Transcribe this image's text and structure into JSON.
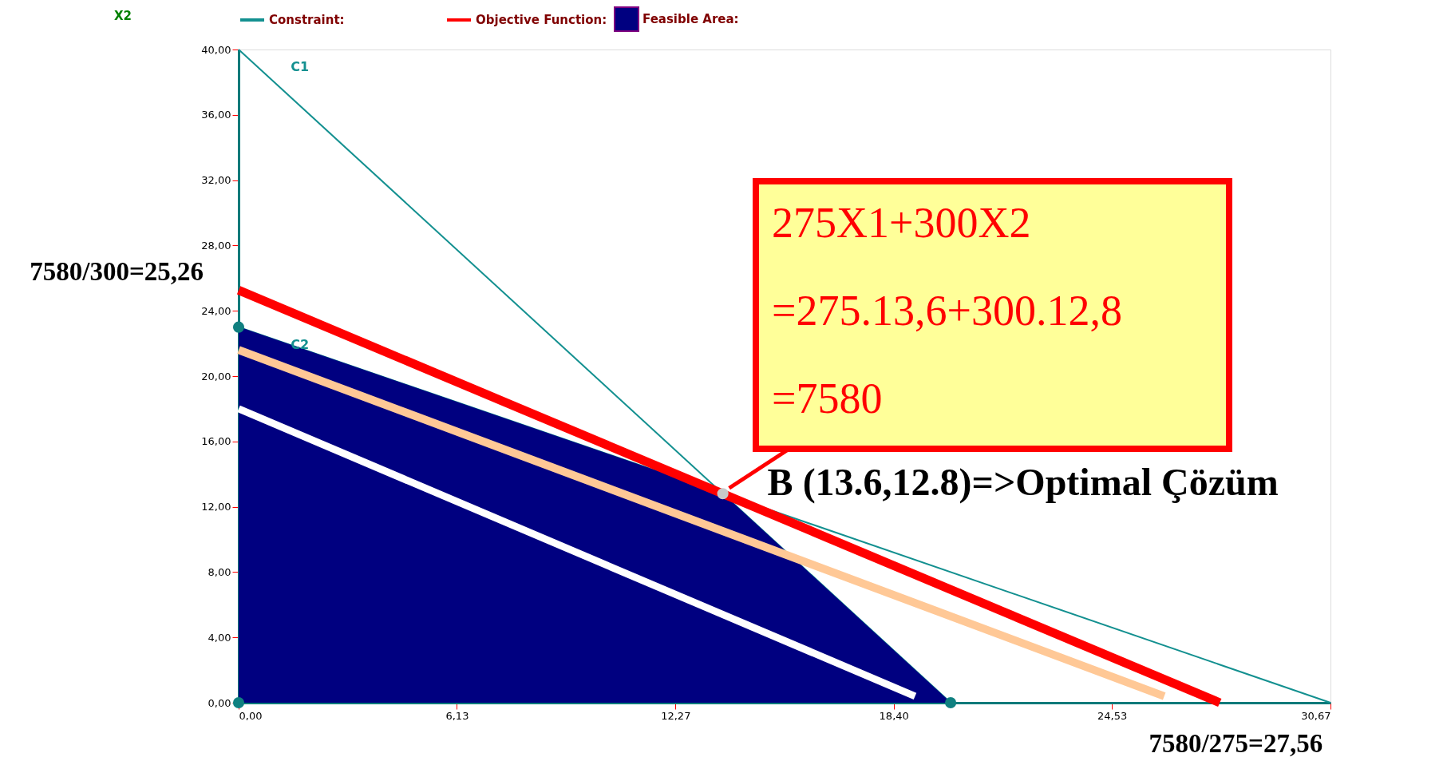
{
  "chart_data": {
    "type": "line",
    "xlim": [
      0,
      30.67
    ],
    "ylim": [
      0,
      40
    ],
    "xticks": [
      {
        "value": 0,
        "label": "0,00"
      },
      {
        "value": 6.13,
        "label": "6,13"
      },
      {
        "value": 12.27,
        "label": "12,27"
      },
      {
        "value": 18.4,
        "label": "18,40"
      },
      {
        "value": 24.53,
        "label": "24,53"
      },
      {
        "value": 30.67,
        "label": "30,67"
      }
    ],
    "yticks": [
      {
        "value": 0,
        "label": "0,00"
      },
      {
        "value": 4,
        "label": "4,00"
      },
      {
        "value": 8,
        "label": "8,00"
      },
      {
        "value": 12,
        "label": "12,00"
      },
      {
        "value": 16,
        "label": "16,00"
      },
      {
        "value": 20,
        "label": "20,00"
      },
      {
        "value": 24,
        "label": "24,00"
      },
      {
        "value": 28,
        "label": "28,00"
      },
      {
        "value": 32,
        "label": "32,00"
      },
      {
        "value": 36,
        "label": "36,00"
      },
      {
        "value": 40,
        "label": "40,00"
      }
    ],
    "grid": false,
    "legend": "top",
    "series": [
      {
        "name": "Feasible Area:",
        "type": "area",
        "color": "#000080",
        "x": [
          0,
          13.6,
          20
        ],
        "values": [
          23,
          12.8,
          0
        ]
      },
      {
        "name": "Constraint:",
        "color": "#139090",
        "x": [
          0,
          20
        ],
        "values": [
          40,
          0
        ]
      },
      {
        "color": "#139090",
        "x": [
          0,
          30.67
        ],
        "values": [
          23,
          0
        ]
      },
      {
        "color": "#ffffff",
        "x": [
          0,
          19.0
        ],
        "values": [
          18.0,
          0.4
        ]
      },
      {
        "color": "#ffc896",
        "x": [
          0,
          26.0
        ],
        "values": [
          21.6,
          0.4
        ]
      },
      {
        "name": "Objective Function:",
        "color": "#ff0000",
        "x": [
          0,
          27.56
        ],
        "values": [
          25.26,
          0
        ]
      },
      {
        "type": "scatter",
        "color": "#108080",
        "x": [
          0,
          0,
          20
        ],
        "values": [
          23,
          0,
          0
        ]
      },
      {
        "type": "scatter",
        "color": "#c8c8c8",
        "x": [
          13.6
        ],
        "values": [
          12.8
        ]
      }
    ],
    "annotations": [
      "X2",
      "C1",
      "C2",
      "275X1+300X2",
      "=275.13,6+300.12,8",
      "=7580",
      {
        "text": "B (13.6,12.8)=>Optimal Çözüm",
        "x": 13.6,
        "y": 12.8
      },
      {
        "text": "7580/300=25,26",
        "x": 0,
        "y": 25.26
      },
      {
        "text": "7580/275=27,56",
        "x": 27.56,
        "y": 0
      }
    ]
  }
}
